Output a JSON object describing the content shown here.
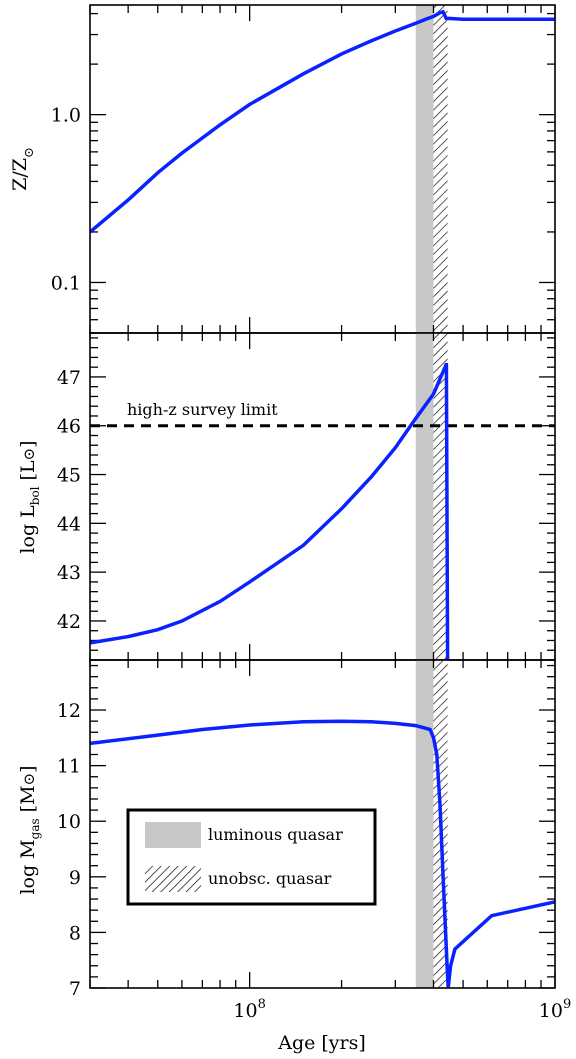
{
  "chart_data": [
    {
      "type": "line",
      "panel": "top",
      "ylabel": "Z/Z",
      "ylabel_symbol": "⊙",
      "xscale": "log",
      "yscale": "log",
      "xlim": [
        30000000,
        1000000000
      ],
      "ylim": [
        0.05,
        4.5
      ],
      "yticks": [
        {
          "value": 0.1,
          "label": "0.1"
        },
        {
          "value": 1.0,
          "label": "1.0"
        }
      ],
      "color": "#0a22ff",
      "series": [
        {
          "x": [
            30000000,
            40000000,
            50000000,
            60000000,
            80000000,
            100000000,
            150000000,
            200000000,
            250000000,
            300000000,
            350000000,
            380000000,
            400000000,
            420000000,
            430000000,
            440000000,
            500000000,
            700000000,
            1000000000
          ],
          "y": [
            0.2,
            0.31,
            0.45,
            0.59,
            0.87,
            1.15,
            1.75,
            2.3,
            2.75,
            3.15,
            3.5,
            3.72,
            3.85,
            4.05,
            4.1,
            3.75,
            3.7,
            3.7,
            3.7
          ]
        }
      ]
    },
    {
      "type": "line",
      "panel": "middle",
      "ylabel": "log L",
      "ylabel_sub": "bol",
      "ylabel_unit": "[L",
      "ylabel_symbol": "⊙",
      "ylabel_end": "]",
      "xscale": "log",
      "xlim": [
        30000000,
        1000000000
      ],
      "ylim": [
        41.2,
        47.9
      ],
      "yticks": [
        {
          "value": 42,
          "label": "42"
        },
        {
          "value": 43,
          "label": "43"
        },
        {
          "value": 44,
          "label": "44"
        },
        {
          "value": 45,
          "label": "45"
        },
        {
          "value": 46,
          "label": "46"
        },
        {
          "value": 47,
          "label": "47"
        }
      ],
      "hline": {
        "value": 46,
        "label": "high-z survey limit",
        "style": "dashed"
      },
      "color": "#0a22ff",
      "series": [
        {
          "x": [
            30000000,
            40000000,
            50000000,
            60000000,
            80000000,
            100000000,
            150000000,
            200000000,
            250000000,
            300000000,
            350000000,
            400000000,
            440000000,
            441000000,
            445000000
          ],
          "y": [
            41.55,
            41.68,
            41.82,
            42.0,
            42.4,
            42.8,
            43.55,
            44.3,
            44.95,
            45.55,
            46.15,
            46.65,
            47.25,
            47.25,
            41.2
          ]
        }
      ]
    },
    {
      "type": "line",
      "panel": "bottom",
      "xlabel": "Age [yrs]",
      "ylabel": "log M",
      "ylabel_sub": "gas",
      "ylabel_unit": "[M",
      "ylabel_symbol": "⊙",
      "ylabel_end": "]",
      "xscale": "log",
      "xlim": [
        30000000,
        1000000000
      ],
      "ylim": [
        7.0,
        12.9
      ],
      "xticks": [
        {
          "value": 100000000,
          "base": "10",
          "exp": "8"
        },
        {
          "value": 1000000000,
          "base": "10",
          "exp": "9"
        }
      ],
      "yticks": [
        {
          "value": 7,
          "label": "7"
        },
        {
          "value": 8,
          "label": "8"
        },
        {
          "value": 9,
          "label": "9"
        },
        {
          "value": 10,
          "label": "10"
        },
        {
          "value": 11,
          "label": "11"
        },
        {
          "value": 12,
          "label": "12"
        }
      ],
      "color": "#0a22ff",
      "series": [
        {
          "x": [
            30000000,
            50000000,
            70000000,
            100000000,
            150000000,
            200000000,
            250000000,
            300000000,
            350000000,
            390000000,
            400000000,
            410000000,
            420000000,
            430000000,
            440000000,
            445000000,
            447000000,
            455000000,
            470000000,
            620000000,
            1000000000
          ],
          "y": [
            11.4,
            11.55,
            11.65,
            11.73,
            11.79,
            11.8,
            11.79,
            11.76,
            11.72,
            11.65,
            11.5,
            11.2,
            10.3,
            9.0,
            7.8,
            7.2,
            7.0,
            7.4,
            7.7,
            8.3,
            8.55
          ]
        }
      ]
    }
  ],
  "shading": {
    "luminous_quasar": {
      "x_start": 350000000,
      "x_end": 400000000,
      "color": "#c8c8c8"
    },
    "unobsc_quasar": {
      "x_start": 400000000,
      "x_end": 445000000
    }
  },
  "legend": {
    "placement": "bottom-left",
    "items": [
      {
        "label": "luminous quasar",
        "swatch": "solid-gray"
      },
      {
        "label": "unobsc. quasar",
        "swatch": "hatched"
      }
    ]
  },
  "annotation": "high-z survey limit"
}
